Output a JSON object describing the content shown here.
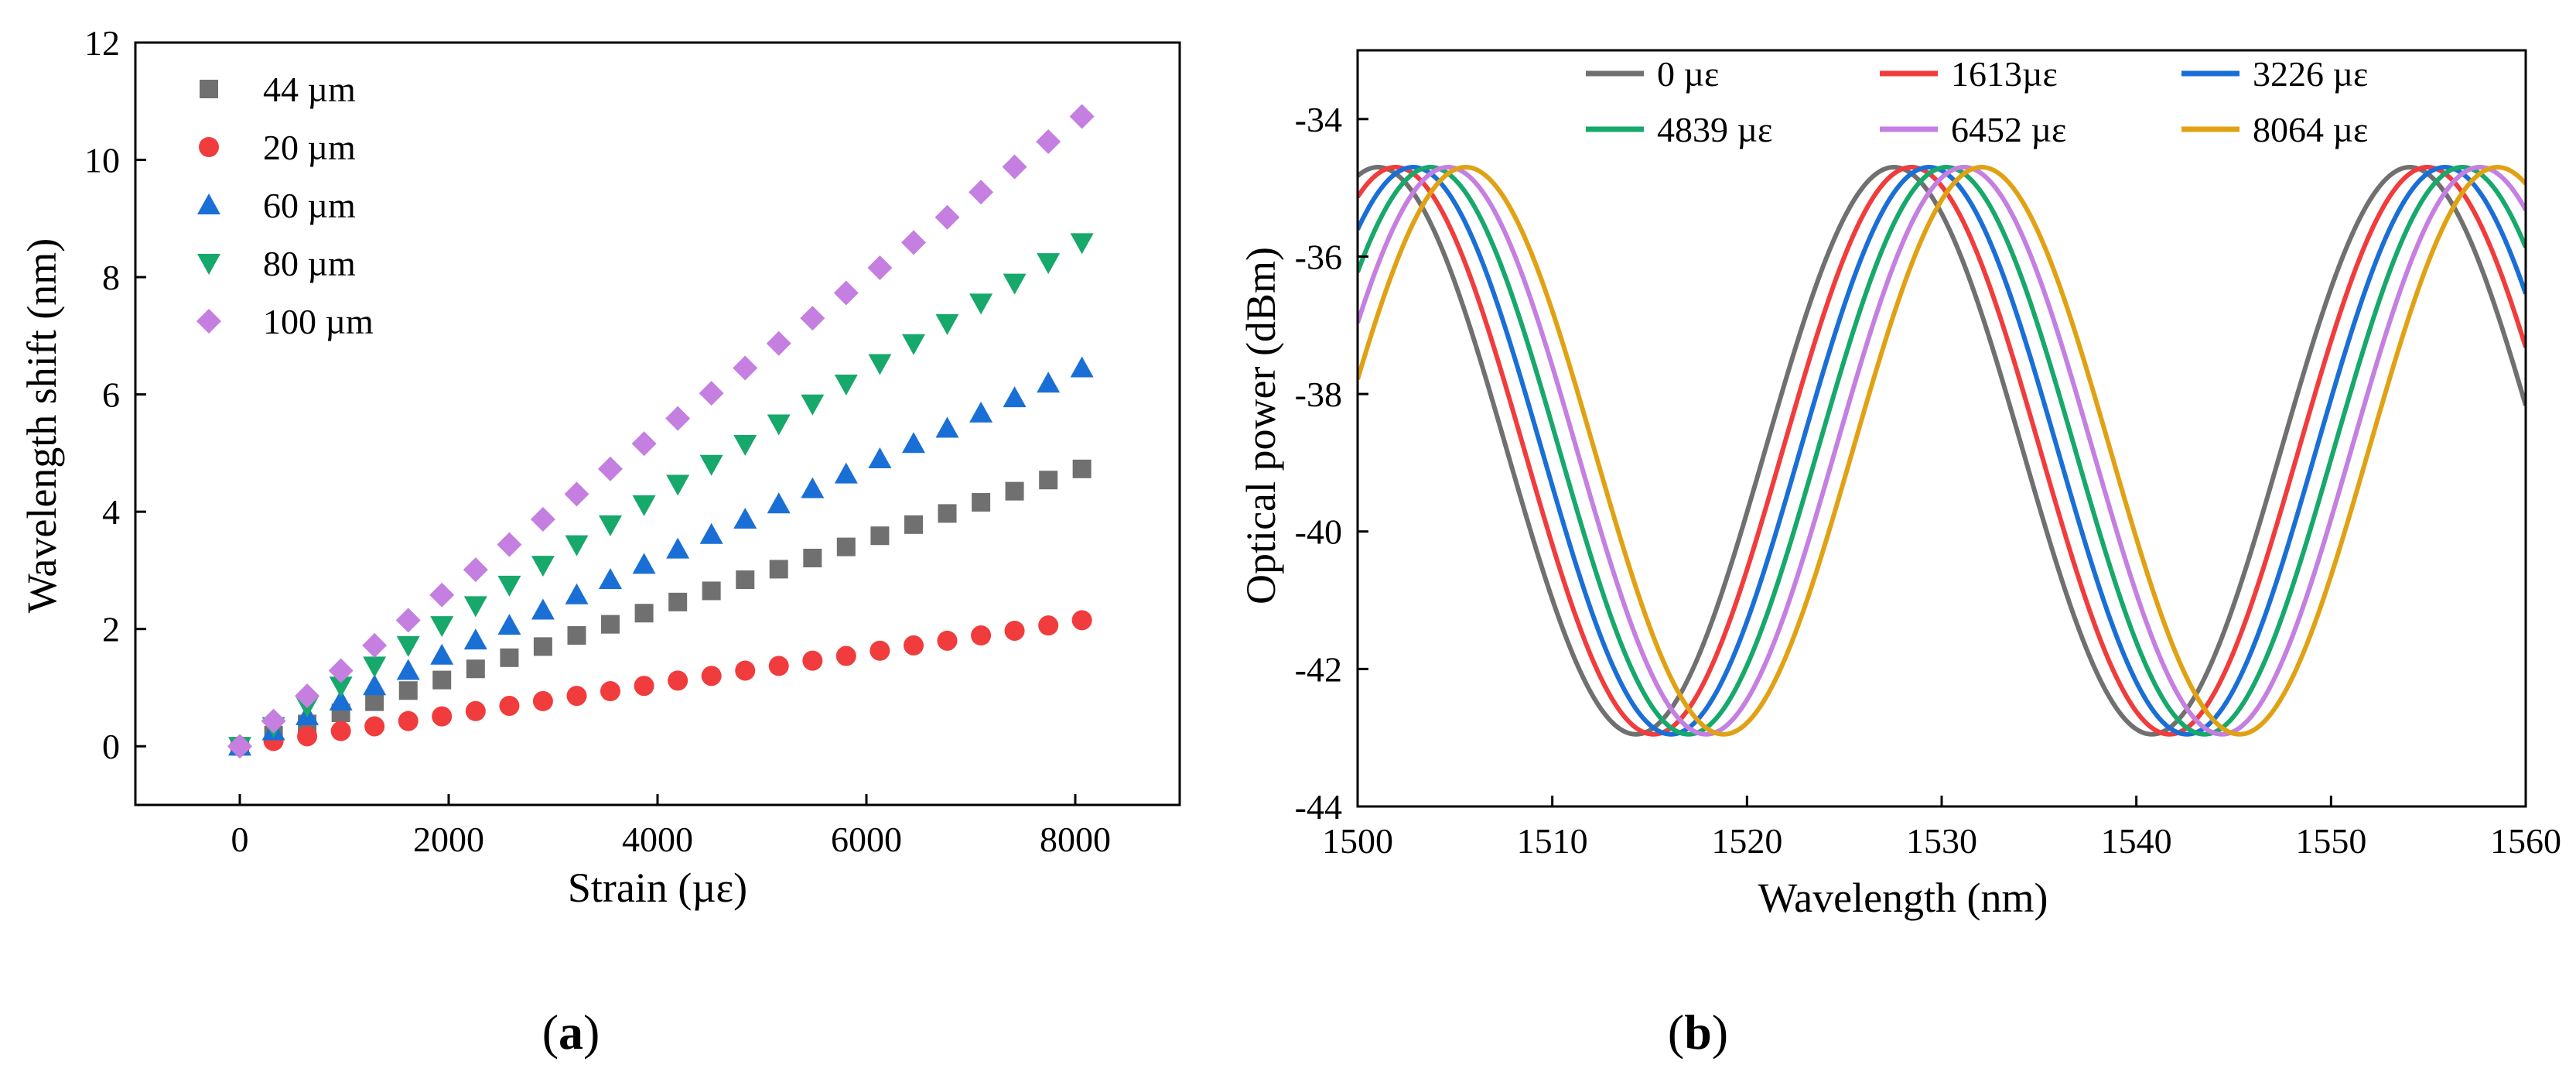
{
  "chart_data": [
    {
      "type": "scatter",
      "panel_label": "a",
      "xlabel": "Strain (µε)",
      "ylabel": "Wavelength shift (nm)",
      "xlim": [
        -1000,
        9000
      ],
      "ylim": [
        -1,
        12
      ],
      "xticks": [
        0,
        2000,
        4000,
        6000,
        8000
      ],
      "yticks": [
        0,
        2,
        4,
        6,
        8,
        10,
        12
      ],
      "legend_position": "top-left",
      "grid": false,
      "strain_values": [
        0,
        323,
        645,
        968,
        1290,
        1613,
        1935,
        2258,
        2581,
        2903,
        3226,
        3548,
        3871,
        4194,
        4516,
        4839,
        5161,
        5484,
        5806,
        6129,
        6452,
        6774,
        7097,
        7419,
        7742,
        8064
      ],
      "series": [
        {
          "name": "44 µm",
          "marker": "square",
          "color": "#707070",
          "slope_nm_per_ue": 0.000586,
          "y": [
            0.0,
            0.19,
            0.38,
            0.57,
            0.76,
            0.95,
            1.13,
            1.32,
            1.51,
            1.7,
            1.89,
            2.08,
            2.27,
            2.46,
            2.65,
            2.84,
            3.02,
            3.21,
            3.4,
            3.59,
            3.78,
            3.97,
            4.16,
            4.35,
            4.54,
            4.73
          ]
        },
        {
          "name": "20 µm",
          "marker": "circle",
          "color": "#f03c3c",
          "slope_nm_per_ue": 0.000266,
          "y": [
            0.0,
            0.09,
            0.17,
            0.26,
            0.34,
            0.43,
            0.51,
            0.6,
            0.69,
            0.77,
            0.86,
            0.94,
            1.03,
            1.12,
            1.2,
            1.29,
            1.37,
            1.46,
            1.54,
            1.63,
            1.72,
            1.8,
            1.89,
            1.97,
            2.06,
            2.15
          ]
        },
        {
          "name": "60 µm",
          "marker": "triangle-up",
          "color": "#1a6fd6",
          "slope_nm_per_ue": 0.0008,
          "y": [
            0.0,
            0.26,
            0.52,
            0.77,
            1.03,
            1.29,
            1.55,
            1.81,
            2.06,
            2.32,
            2.58,
            2.84,
            3.1,
            3.36,
            3.61,
            3.87,
            4.13,
            4.39,
            4.64,
            4.9,
            5.16,
            5.42,
            5.68,
            5.94,
            6.19,
            6.45
          ]
        },
        {
          "name": "80 µm",
          "marker": "triangle-down",
          "color": "#17a86b",
          "slope_nm_per_ue": 0.001065,
          "y": [
            0.0,
            0.34,
            0.69,
            1.03,
            1.37,
            1.72,
            2.06,
            2.4,
            2.75,
            3.09,
            3.44,
            3.78,
            4.12,
            4.47,
            4.81,
            5.15,
            5.5,
            5.84,
            6.18,
            6.53,
            6.87,
            7.21,
            7.56,
            7.9,
            8.25,
            8.59
          ]
        },
        {
          "name": "100 µm",
          "marker": "diamond",
          "color": "#c47fe0",
          "slope_nm_per_ue": 0.001332,
          "y": [
            0.0,
            0.43,
            0.86,
            1.29,
            1.72,
            2.15,
            2.58,
            3.01,
            3.44,
            3.87,
            4.3,
            4.73,
            5.16,
            5.59,
            6.02,
            6.45,
            6.87,
            7.3,
            7.73,
            8.16,
            8.59,
            9.02,
            9.45,
            9.88,
            10.31,
            10.74
          ]
        }
      ]
    },
    {
      "type": "line",
      "panel_label": "b",
      "xlabel": "Wavelength (nm)",
      "ylabel": "Optical power (dBm)",
      "xlim": [
        1500,
        1560
      ],
      "ylim": [
        -44,
        -33
      ],
      "xticks": [
        1500,
        1510,
        1520,
        1530,
        1540,
        1550,
        1560
      ],
      "yticks": [
        -44,
        -42,
        -40,
        -38,
        -36,
        -34
      ],
      "legend_position": "top",
      "grid": false,
      "curve_model": {
        "max_dBm": -34.7,
        "min_dBm": -42.95,
        "period_nm": 26.5
      },
      "series": [
        {
          "name": "0 µε",
          "color": "#707070",
          "dip_wavelengths_nm": [
            1514.3,
            1540.8
          ]
        },
        {
          "name": "1613µε",
          "color": "#f03c3c",
          "dip_wavelengths_nm": [
            1515.2,
            1541.7
          ]
        },
        {
          "name": "3226 µε",
          "color": "#1a6fd6",
          "dip_wavelengths_nm": [
            1516.1,
            1542.6
          ]
        },
        {
          "name": "4839 µε",
          "color": "#17a86b",
          "dip_wavelengths_nm": [
            1517.0,
            1543.5
          ]
        },
        {
          "name": "6452 µε",
          "color": "#c47fe0",
          "dip_wavelengths_nm": [
            1517.9,
            1544.4
          ]
        },
        {
          "name": "8064 µε",
          "color": "#e0a214",
          "dip_wavelengths_nm": [
            1518.8,
            1545.3
          ]
        }
      ]
    }
  ]
}
